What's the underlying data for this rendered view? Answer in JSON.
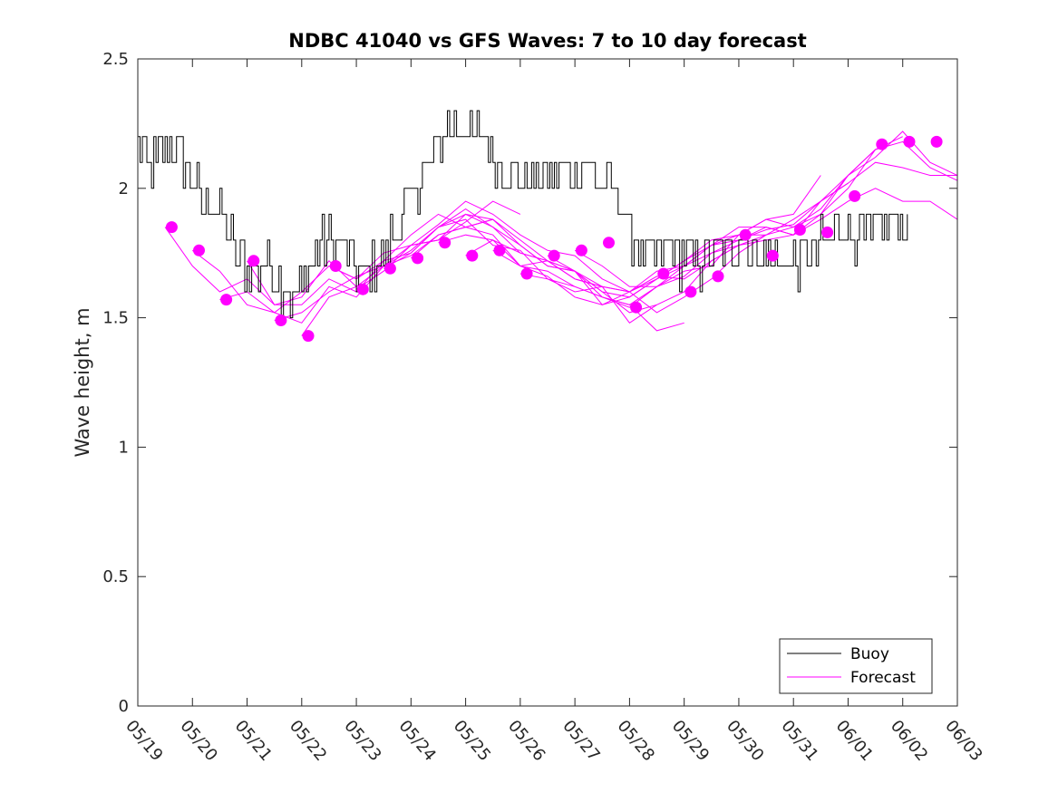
{
  "chart_data": {
    "type": "line",
    "title": "NDBC 41040 vs GFS Waves: 7 to 10 day forecast",
    "xlabel": "",
    "ylabel": "Wave height, m",
    "x_ticks": [
      "05/19",
      "05/20",
      "05/21",
      "05/22",
      "05/23",
      "05/24",
      "05/25",
      "05/26",
      "05/27",
      "05/28",
      "05/29",
      "05/30",
      "05/31",
      "06/01",
      "06/02",
      "06/03"
    ],
    "xlim_days": [
      0,
      15
    ],
    "ylim": [
      0,
      2.5
    ],
    "y_ticks": [
      "0",
      "0.5",
      "1",
      "1.5",
      "2",
      "2.5"
    ],
    "grid": false,
    "legend": {
      "placement": "bottom-right",
      "entries": [
        "Buoy",
        "Forecast"
      ]
    },
    "colors": {
      "buoy": "#000000",
      "forecast": "#ff00ff"
    },
    "buoy_anchors": [
      [
        0.0,
        2.2
      ],
      [
        0.2,
        2.1
      ],
      [
        0.4,
        2.1
      ],
      [
        0.55,
        2.2
      ],
      [
        0.8,
        2.1
      ],
      [
        1.0,
        2.0
      ],
      [
        1.2,
        1.95
      ],
      [
        1.4,
        1.9
      ],
      [
        1.6,
        1.85
      ],
      [
        1.8,
        1.75
      ],
      [
        2.0,
        1.7
      ],
      [
        2.2,
        1.68
      ],
      [
        2.4,
        1.7
      ],
      [
        2.6,
        1.62
      ],
      [
        2.8,
        1.58
      ],
      [
        3.0,
        1.6
      ],
      [
        3.2,
        1.72
      ],
      [
        3.4,
        1.8
      ],
      [
        3.6,
        1.82
      ],
      [
        3.8,
        1.78
      ],
      [
        4.0,
        1.7
      ],
      [
        4.2,
        1.65
      ],
      [
        4.4,
        1.72
      ],
      [
        4.6,
        1.8
      ],
      [
        4.8,
        1.88
      ],
      [
        5.0,
        1.95
      ],
      [
        5.2,
        2.05
      ],
      [
        5.4,
        2.12
      ],
      [
        5.6,
        2.22
      ],
      [
        5.8,
        2.25
      ],
      [
        6.0,
        2.22
      ],
      [
        6.2,
        2.2
      ],
      [
        6.4,
        2.18
      ],
      [
        6.6,
        2.12
      ],
      [
        6.8,
        2.05
      ],
      [
        7.0,
        2.05
      ],
      [
        7.2,
        2.05
      ],
      [
        7.4,
        2.07
      ],
      [
        7.6,
        2.05
      ],
      [
        7.8,
        2.05
      ],
      [
        8.0,
        2.07
      ],
      [
        8.2,
        2.08
      ],
      [
        8.4,
        2.05
      ],
      [
        8.6,
        2.0
      ],
      [
        8.8,
        1.95
      ],
      [
        9.0,
        1.85
      ],
      [
        9.2,
        1.75
      ],
      [
        9.4,
        1.72
      ],
      [
        9.6,
        1.78
      ],
      [
        9.8,
        1.75
      ],
      [
        10.0,
        1.72
      ],
      [
        10.2,
        1.7
      ],
      [
        10.4,
        1.72
      ],
      [
        10.6,
        1.75
      ],
      [
        10.8,
        1.78
      ],
      [
        11.0,
        1.8
      ],
      [
        11.2,
        1.78
      ],
      [
        11.4,
        1.75
      ],
      [
        11.6,
        1.72
      ],
      [
        11.8,
        1.72
      ],
      [
        12.0,
        1.72
      ],
      [
        12.2,
        1.7
      ],
      [
        12.4,
        1.75
      ],
      [
        12.6,
        1.8
      ],
      [
        12.8,
        1.85
      ],
      [
        13.0,
        1.85
      ],
      [
        13.2,
        1.82
      ],
      [
        13.4,
        1.8
      ],
      [
        13.6,
        1.85
      ],
      [
        13.8,
        1.88
      ],
      [
        14.0,
        1.85
      ],
      [
        14.1,
        1.8
      ]
    ],
    "buoy_noise": 0.09,
    "buoy_samples_per_day": 24,
    "forecast_series": [
      [
        [
          0.5,
          1.85
        ],
        [
          1.0,
          1.7
        ],
        [
          1.5,
          1.6
        ],
        [
          2.0,
          1.65
        ],
        [
          2.5,
          1.55
        ],
        [
          3.0,
          1.58
        ],
        [
          3.5,
          1.72
        ],
        [
          4.0,
          1.62
        ]
      ],
      [
        [
          1.0,
          1.76
        ],
        [
          1.5,
          1.68
        ],
        [
          2.0,
          1.55
        ],
        [
          2.5,
          1.52
        ],
        [
          3.0,
          1.6
        ],
        [
          3.5,
          1.7
        ],
        [
          4.0,
          1.65
        ],
        [
          4.5,
          1.75
        ],
        [
          5.0,
          1.78
        ],
        [
          5.5,
          1.8
        ],
        [
          6.0,
          1.87
        ],
        [
          6.5,
          1.95
        ],
        [
          7.0,
          1.9
        ]
      ],
      [
        [
          1.5,
          1.57
        ],
        [
          2.0,
          1.6
        ],
        [
          2.5,
          1.52
        ],
        [
          3.0,
          1.48
        ],
        [
          3.5,
          1.62
        ],
        [
          4.0,
          1.58
        ],
        [
          4.5,
          1.7
        ],
        [
          5.0,
          1.74
        ],
        [
          5.5,
          1.82
        ],
        [
          6.0,
          1.85
        ],
        [
          6.5,
          1.88
        ]
      ],
      [
        [
          2.0,
          1.72
        ],
        [
          2.5,
          1.55
        ],
        [
          3.0,
          1.55
        ],
        [
          3.5,
          1.65
        ],
        [
          4.0,
          1.6
        ],
        [
          4.5,
          1.72
        ],
        [
          5.0,
          1.82
        ],
        [
          5.5,
          1.9
        ],
        [
          6.0,
          1.85
        ],
        [
          6.5,
          1.82
        ],
        [
          7.0,
          1.7
        ],
        [
          7.5,
          1.72
        ],
        [
          8.0,
          1.65
        ],
        [
          8.5,
          1.62
        ]
      ],
      [
        [
          2.5,
          1.49
        ],
        [
          3.0,
          1.52
        ],
        [
          3.5,
          1.6
        ],
        [
          4.0,
          1.66
        ],
        [
          4.5,
          1.7
        ],
        [
          5.0,
          1.78
        ],
        [
          5.5,
          1.8
        ],
        [
          6.0,
          1.9
        ],
        [
          6.5,
          1.85
        ],
        [
          7.0,
          1.78
        ],
        [
          7.5,
          1.7
        ],
        [
          8.0,
          1.68
        ],
        [
          8.5,
          1.6
        ],
        [
          9.0,
          1.52
        ],
        [
          9.5,
          1.55
        ]
      ],
      [
        [
          3.0,
          1.43
        ],
        [
          3.5,
          1.58
        ],
        [
          4.0,
          1.62
        ],
        [
          4.5,
          1.7
        ],
        [
          5.0,
          1.76
        ],
        [
          5.5,
          1.85
        ],
        [
          6.0,
          1.88
        ],
        [
          6.5,
          1.78
        ],
        [
          7.0,
          1.76
        ],
        [
          7.5,
          1.65
        ],
        [
          8.0,
          1.62
        ],
        [
          8.5,
          1.58
        ],
        [
          9.0,
          1.55
        ],
        [
          9.5,
          1.45
        ],
        [
          10.0,
          1.48
        ]
      ],
      [
        [
          3.5,
          1.7
        ],
        [
          4.0,
          1.65
        ],
        [
          4.5,
          1.72
        ],
        [
          5.0,
          1.75
        ],
        [
          5.5,
          1.85
        ],
        [
          6.0,
          1.92
        ],
        [
          6.5,
          1.85
        ],
        [
          7.0,
          1.75
        ],
        [
          7.5,
          1.72
        ],
        [
          8.0,
          1.68
        ],
        [
          8.5,
          1.62
        ],
        [
          9.0,
          1.48
        ],
        [
          9.5,
          1.55
        ],
        [
          10.0,
          1.6
        ],
        [
          10.5,
          1.72
        ],
        [
          11.0,
          1.78
        ]
      ],
      [
        [
          4.0,
          1.61
        ],
        [
          4.5,
          1.68
        ],
        [
          5.0,
          1.78
        ],
        [
          5.5,
          1.86
        ],
        [
          6.0,
          1.95
        ],
        [
          6.5,
          1.9
        ],
        [
          7.0,
          1.82
        ],
        [
          7.5,
          1.76
        ],
        [
          8.0,
          1.74
        ],
        [
          8.5,
          1.65
        ],
        [
          9.0,
          1.6
        ],
        [
          9.5,
          1.52
        ],
        [
          10.0,
          1.58
        ],
        [
          10.5,
          1.65
        ],
        [
          11.0,
          1.75
        ],
        [
          11.5,
          1.82
        ]
      ],
      [
        [
          4.5,
          1.69
        ],
        [
          5.0,
          1.75
        ],
        [
          5.5,
          1.85
        ],
        [
          6.0,
          1.9
        ],
        [
          6.5,
          1.88
        ],
        [
          7.0,
          1.8
        ],
        [
          7.5,
          1.72
        ],
        [
          8.0,
          1.68
        ],
        [
          8.5,
          1.58
        ],
        [
          9.0,
          1.55
        ],
        [
          9.5,
          1.62
        ],
        [
          10.0,
          1.68
        ],
        [
          10.5,
          1.7
        ],
        [
          11.0,
          1.82
        ],
        [
          11.5,
          1.88
        ],
        [
          12.0,
          1.9
        ],
        [
          12.5,
          2.05
        ]
      ],
      [
        [
          5.0,
          1.73
        ],
        [
          5.5,
          1.82
        ],
        [
          6.0,
          1.85
        ],
        [
          6.5,
          1.88
        ],
        [
          7.0,
          1.78
        ],
        [
          7.5,
          1.7
        ],
        [
          8.0,
          1.68
        ],
        [
          8.5,
          1.6
        ],
        [
          9.0,
          1.58
        ],
        [
          9.5,
          1.65
        ],
        [
          10.0,
          1.7
        ],
        [
          10.5,
          1.78
        ],
        [
          11.0,
          1.85
        ],
        [
          11.5,
          1.85
        ],
        [
          12.0,
          1.82
        ],
        [
          12.5,
          1.95
        ],
        [
          13.0,
          2.02
        ]
      ],
      [
        [
          5.5,
          1.79
        ],
        [
          6.0,
          1.82
        ],
        [
          6.5,
          1.8
        ],
        [
          7.0,
          1.75
        ],
        [
          7.5,
          1.72
        ],
        [
          8.0,
          1.65
        ],
        [
          8.5,
          1.62
        ],
        [
          9.0,
          1.6
        ],
        [
          9.5,
          1.66
        ],
        [
          10.0,
          1.65
        ],
        [
          10.5,
          1.72
        ],
        [
          11.0,
          1.78
        ],
        [
          11.5,
          1.82
        ],
        [
          12.0,
          1.85
        ],
        [
          12.5,
          1.92
        ],
        [
          13.0,
          2.05
        ],
        [
          13.5,
          2.15
        ]
      ],
      [
        [
          6.0,
          1.74
        ],
        [
          6.5,
          1.8
        ],
        [
          7.0,
          1.7
        ],
        [
          7.5,
          1.68
        ],
        [
          8.0,
          1.62
        ],
        [
          8.5,
          1.58
        ],
        [
          9.0,
          1.54
        ],
        [
          9.5,
          1.62
        ],
        [
          10.0,
          1.66
        ],
        [
          10.5,
          1.75
        ],
        [
          11.0,
          1.78
        ],
        [
          11.5,
          1.8
        ],
        [
          12.0,
          1.82
        ],
        [
          12.5,
          1.9
        ],
        [
          13.0,
          2.0
        ],
        [
          13.5,
          2.15
        ],
        [
          14.0,
          2.2
        ]
      ],
      [
        [
          6.5,
          1.76
        ],
        [
          7.0,
          1.7
        ],
        [
          7.5,
          1.66
        ],
        [
          8.0,
          1.58
        ],
        [
          8.5,
          1.55
        ],
        [
          9.0,
          1.6
        ],
        [
          9.5,
          1.68
        ],
        [
          10.0,
          1.7
        ],
        [
          10.5,
          1.78
        ],
        [
          11.0,
          1.8
        ],
        [
          11.5,
          1.84
        ],
        [
          12.0,
          1.86
        ],
        [
          12.5,
          1.95
        ],
        [
          13.0,
          2.05
        ],
        [
          13.5,
          2.12
        ],
        [
          14.0,
          2.22
        ],
        [
          14.5,
          2.1
        ],
        [
          15.0,
          2.05
        ]
      ],
      [
        [
          7.0,
          1.67
        ],
        [
          7.5,
          1.65
        ],
        [
          8.0,
          1.6
        ],
        [
          8.5,
          1.62
        ],
        [
          9.0,
          1.6
        ],
        [
          9.5,
          1.65
        ],
        [
          10.0,
          1.72
        ],
        [
          10.5,
          1.78
        ],
        [
          11.0,
          1.82
        ],
        [
          11.5,
          1.88
        ],
        [
          12.0,
          1.85
        ],
        [
          12.5,
          1.9
        ],
        [
          13.0,
          2.05
        ],
        [
          13.5,
          2.15
        ],
        [
          14.0,
          2.18
        ],
        [
          14.5,
          2.08
        ],
        [
          15.0,
          2.03
        ]
      ],
      [
        [
          7.5,
          1.74
        ],
        [
          8.0,
          1.68
        ],
        [
          8.5,
          1.55
        ],
        [
          9.0,
          1.58
        ],
        [
          9.5,
          1.65
        ],
        [
          10.0,
          1.72
        ],
        [
          10.5,
          1.8
        ],
        [
          11.0,
          1.82
        ],
        [
          11.5,
          1.82
        ],
        [
          12.0,
          1.88
        ],
        [
          12.5,
          1.95
        ],
        [
          13.0,
          2.02
        ],
        [
          13.5,
          2.1
        ],
        [
          14.0,
          2.08
        ],
        [
          14.5,
          2.05
        ],
        [
          15.0,
          2.05
        ]
      ],
      [
        [
          8.0,
          1.76
        ],
        [
          8.5,
          1.7
        ],
        [
          9.0,
          1.62
        ],
        [
          9.5,
          1.62
        ],
        [
          10.0,
          1.7
        ],
        [
          10.5,
          1.75
        ],
        [
          11.0,
          1.8
        ],
        [
          11.5,
          1.85
        ],
        [
          12.0,
          1.82
        ],
        [
          12.5,
          1.88
        ],
        [
          13.0,
          1.95
        ],
        [
          13.5,
          2.0
        ],
        [
          14.0,
          1.95
        ],
        [
          14.5,
          1.95
        ],
        [
          15.0,
          1.88
        ]
      ]
    ],
    "forecast_markers": [
      [
        0.62,
        1.85
      ],
      [
        1.12,
        1.76
      ],
      [
        1.62,
        1.57
      ],
      [
        2.12,
        1.72
      ],
      [
        2.62,
        1.49
      ],
      [
        3.12,
        1.43
      ],
      [
        3.62,
        1.7
      ],
      [
        4.12,
        1.61
      ],
      [
        4.62,
        1.69
      ],
      [
        5.12,
        1.73
      ],
      [
        5.62,
        1.79
      ],
      [
        6.12,
        1.74
      ],
      [
        6.62,
        1.76
      ],
      [
        7.12,
        1.67
      ],
      [
        7.62,
        1.74
      ],
      [
        8.12,
        1.76
      ],
      [
        8.62,
        1.79
      ],
      [
        9.12,
        1.54
      ],
      [
        9.62,
        1.67
      ],
      [
        10.12,
        1.6
      ],
      [
        10.62,
        1.66
      ],
      [
        11.12,
        1.82
      ],
      [
        11.62,
        1.74
      ],
      [
        12.12,
        1.84
      ],
      [
        12.62,
        1.83
      ],
      [
        13.12,
        1.97
      ],
      [
        13.62,
        2.17
      ],
      [
        14.12,
        2.18
      ],
      [
        14.62,
        2.18
      ]
    ]
  }
}
